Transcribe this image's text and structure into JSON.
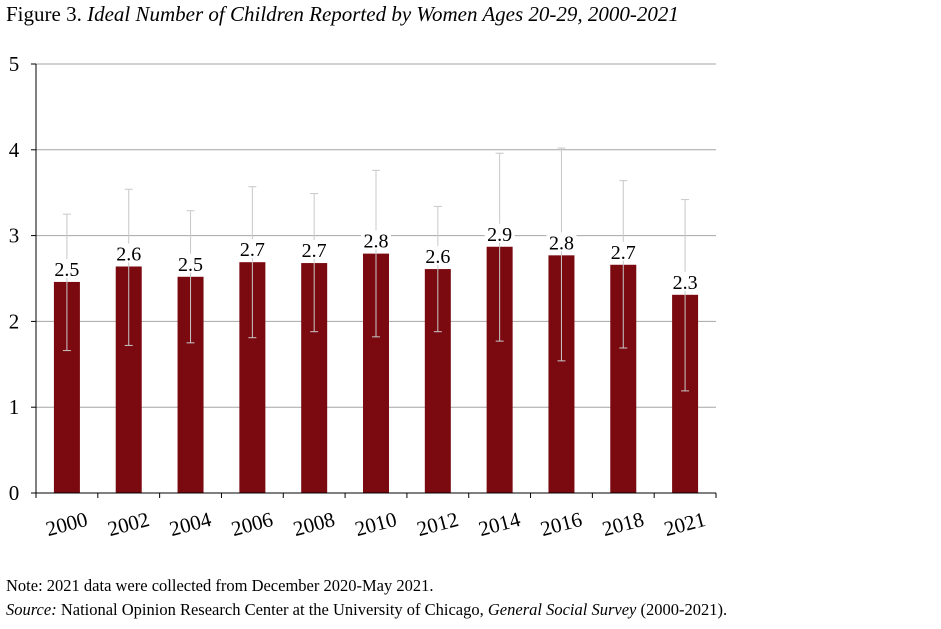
{
  "figure": {
    "label": "Figure 3.",
    "title": "Ideal Number of Children Reported by Women Ages 20-29, 2000-2021"
  },
  "notes": {
    "note": "Note: 2021 data were collected from December 2020-May 2021.",
    "source_label": "Source:",
    "source_text_1": " National Opinion Research Center at the University of Chicago, ",
    "source_survey": "General Social Survey",
    "source_text_2": " (2000-2021)."
  },
  "colors": {
    "bar": "#7a0a10",
    "error_bar": "#c8c8c8",
    "grid": "#a6a6a6",
    "axis": "#000000"
  },
  "chart_data": {
    "type": "bar",
    "title": "Ideal Number of Children Reported by Women Ages 20-29, 2000-2021",
    "xlabel": "",
    "ylabel": "",
    "ylim": [
      0,
      5
    ],
    "yticks": [
      0,
      1,
      2,
      3,
      4,
      5
    ],
    "grid": true,
    "legend": "none",
    "categories": [
      "2000",
      "2002",
      "2004",
      "2006",
      "2008",
      "2010",
      "2012",
      "2014",
      "2016",
      "2018",
      "2021"
    ],
    "values": [
      2.46,
      2.64,
      2.52,
      2.69,
      2.68,
      2.79,
      2.61,
      2.87,
      2.77,
      2.66,
      2.31
    ],
    "data_labels": [
      "2.5",
      "2.6",
      "2.5",
      "2.7",
      "2.7",
      "2.8",
      "2.6",
      "2.9",
      "2.8",
      "2.7",
      "2.3"
    ],
    "error_low": [
      1.66,
      1.72,
      1.75,
      1.81,
      1.88,
      1.82,
      1.88,
      1.77,
      1.54,
      1.69,
      1.19
    ],
    "error_high": [
      3.25,
      3.54,
      3.29,
      3.57,
      3.49,
      3.76,
      3.34,
      3.96,
      4.02,
      3.64,
      3.42
    ]
  }
}
